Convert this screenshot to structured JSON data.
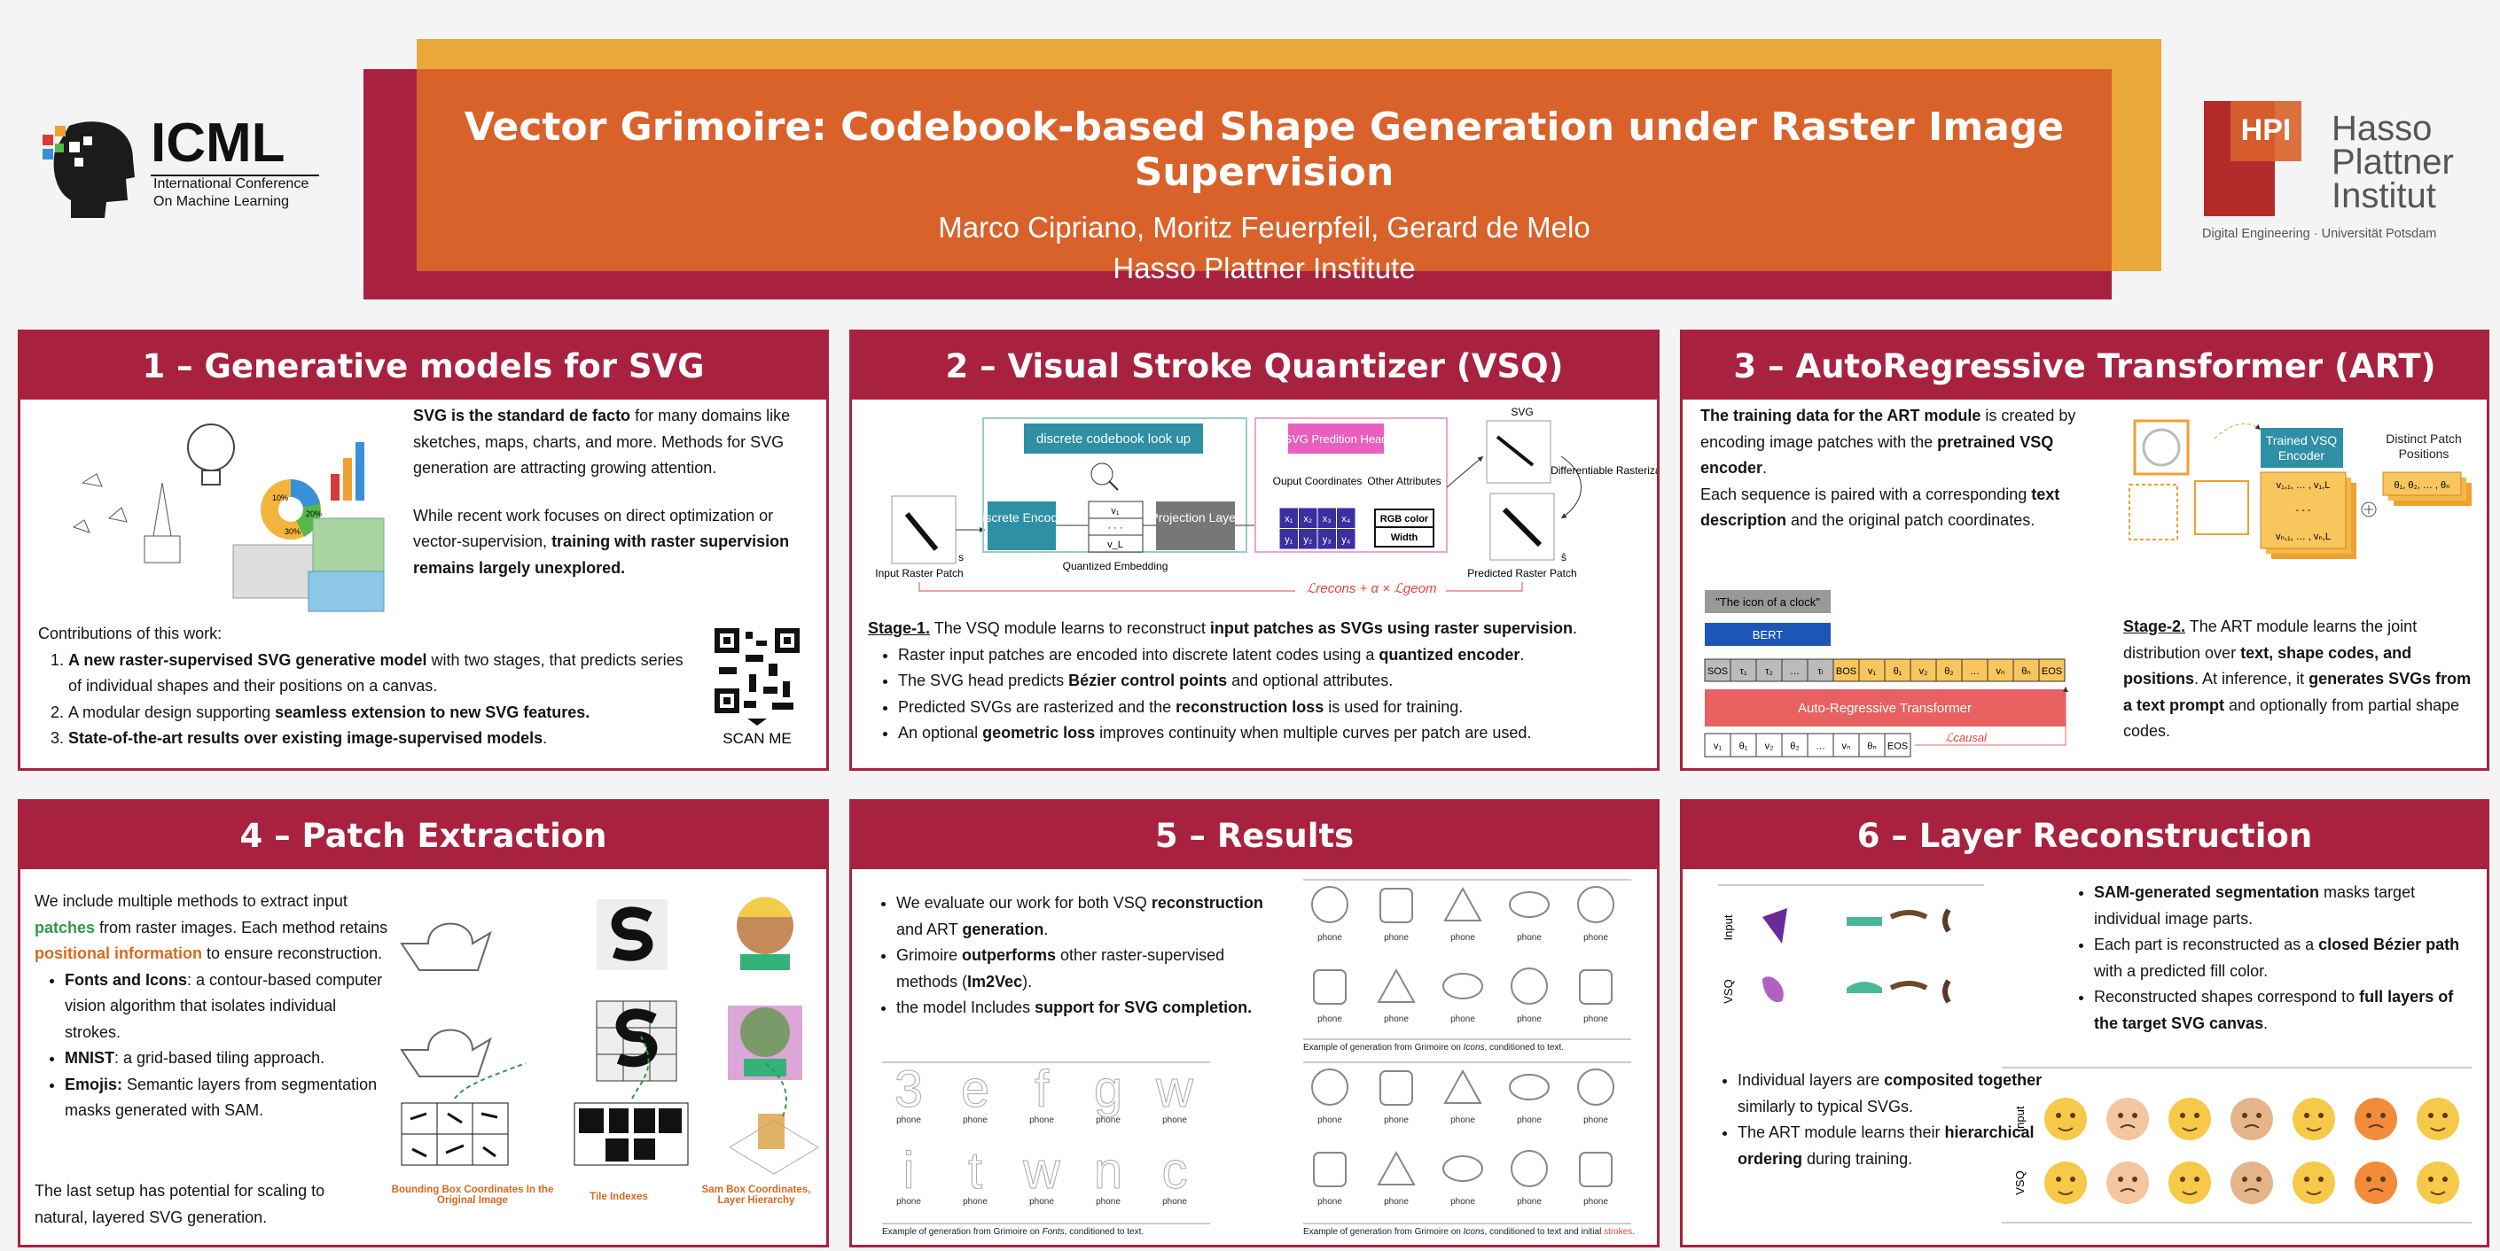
{
  "header": {
    "title": "Vector Grimoire: Codebook-based Shape Generation under Raster Image Supervision",
    "authors": "Marco Cipriano, Moritz Feuerpfeil, Gerard de Melo",
    "affiliation": "Hasso Plattner Institute"
  },
  "logos": {
    "icml": {
      "name": "ICML",
      "subtitle": [
        "International Conference",
        "On Machine Learning"
      ]
    },
    "hpi": {
      "mark": "HPI",
      "name": [
        "Hasso",
        "Plattner",
        "Institut"
      ],
      "subtitle": "Digital Engineering · Universität Potsdam"
    }
  },
  "sections": [
    {
      "title": "1 – Generative models for SVG",
      "intro": [
        [
          {
            "t": "SVG is the standard de facto",
            "bold": true
          },
          " for many domains like sketches, maps, charts, and more. Methods for SVG generation are attracting growing attention."
        ],
        [
          "While recent work focuses on direct optimization or vector-supervision, ",
          {
            "t": "training with raster supervision remains largely unexplored.",
            "bold": true
          }
        ]
      ],
      "contributions_title": "Contributions of this work:",
      "contributions": [
        [
          {
            "t": "A new raster-supervised SVG generative model",
            "bold": true
          },
          " with two stages, that predicts series of individual shapes and their positions on a canvas."
        ],
        [
          "A modular design supporting ",
          {
            "t": "seamless extension to new SVG features.",
            "bold": true
          }
        ],
        [
          {
            "t": "State-of-the-art results over existing image-supervised models",
            "bold": true
          },
          "."
        ]
      ],
      "figure_labels": [
        "10%",
        "20%",
        "30%"
      ],
      "qr_label": "SCAN ME"
    },
    {
      "title": "2 – Visual Stroke Quantizer (VSQ)",
      "figure": {
        "codebook": "discrete codebook look up",
        "head": "SVG Predition Head",
        "encoder": "Discrete Encoder",
        "projection": "Projection Layer",
        "embedding_label": "Quantized Embedding",
        "embedding": [
          "v₁",
          "· · ·",
          "v_L"
        ],
        "coords_label": "Ouput Coordinates",
        "coords": [
          "x₁",
          "x₂",
          "x₃",
          "x₄",
          "y₁",
          "y₂",
          "y₃",
          "y₄"
        ],
        "attributes_label": "Other Attributes",
        "attributes": [
          "RGB color",
          "Width"
        ],
        "input_label": "Input Raster Patch",
        "svg_label": "SVG",
        "raster_label": "Differentiable Rasterization",
        "output_label": "Predicted Raster Patch",
        "input_symbol": "s",
        "output_symbol": "ŝ",
        "loss": "ℒrecons + α × ℒgeom"
      },
      "stage": [
        {
          "t": "Stage-1.",
          "bold": true,
          "underline": true
        },
        " The VSQ module learns to reconstruct ",
        {
          "t": "input patches as SVGs using raster supervision",
          "bold": true
        },
        "."
      ],
      "bullets": [
        [
          "Raster input patches are encoded into discrete latent codes using a ",
          {
            "t": "quantized encoder",
            "bold": true
          },
          "."
        ],
        [
          "The SVG head predicts ",
          {
            "t": "Bézier control points",
            "bold": true
          },
          " and optional attributes."
        ],
        [
          "Predicted SVGs are rasterized and the ",
          {
            "t": "reconstruction loss",
            "bold": true
          },
          " is used for training."
        ],
        [
          "An optional ",
          {
            "t": "geometric loss",
            "bold": true
          },
          " improves continuity when multiple curves per patch are used."
        ]
      ]
    },
    {
      "title": "3 – AutoRegressive Transformer (ART)",
      "intro": [
        [
          {
            "t": "The training data for the ART module",
            "bold": true
          },
          " is created by encoding image patches with the ",
          {
            "t": "pretrained VSQ encoder",
            "bold": true
          },
          "."
        ],
        [
          "Each sequence is paired with a corresponding ",
          {
            "t": "text description",
            "bold": true
          },
          " and the original patch coordinates."
        ]
      ],
      "figure": {
        "encoder": "Trained VSQ Encoder",
        "codes": [
          "v₁,₁, … , v₁,L",
          "- - -",
          "vₙ,₁, … , vₙ,L"
        ],
        "positions_label": "Distinct Patch Positions",
        "positions": "θ₁, θ₂, … , θₙ",
        "prompt": "\"The icon of a clock\"",
        "bert": "BERT",
        "tokens": [
          "SOS",
          "τ₁",
          "τ₂",
          "…",
          "τₗ",
          "BOS",
          "v₁",
          "θ₁",
          "v₂",
          "θ₂",
          "…",
          "vₙ",
          "θₙ",
          "EOS"
        ],
        "transformer": "Auto-Regressive Transformer",
        "outputs": [
          "v₁",
          "θ₁",
          "v₂",
          "θ₂",
          "…",
          "vₙ",
          "θₙ",
          "EOS"
        ],
        "loss": "ℒcausal"
      },
      "stage": [
        {
          "t": "Stage-2.",
          "bold": true,
          "underline": true
        },
        " The ART module learns the joint distribution over ",
        {
          "t": "text, shape codes, and positions",
          "bold": true
        },
        ". At inference, it ",
        {
          "t": "generates SVGs from a text prompt",
          "bold": true
        },
        " and optionally from partial shape codes."
      ]
    },
    {
      "title": "4 – Patch Extraction",
      "intro": [
        "We include multiple methods to extract input ",
        {
          "t": "patches",
          "bold": true,
          "color": "#2f9a46"
        },
        " from raster images. Each method retains ",
        {
          "t": "positional information",
          "bold": true,
          "color": "#d9691e"
        },
        " to ensure reconstruction."
      ],
      "bullets": [
        [
          {
            "t": "Fonts and Icons",
            "bold": true
          },
          ": a contour-based computer vision algorithm that isolates individual strokes."
        ],
        [
          {
            "t": "MNIST",
            "bold": true
          },
          ": a grid-based tiling approach."
        ],
        [
          {
            "t": "Emojis:",
            "bold": true
          },
          " Semantic layers from segmentation masks generated with SAM."
        ]
      ],
      "outro": "The last setup has potential for scaling to natural, layered SVG generation.",
      "captions": [
        "Bounding Box Coordinates In the Original Image",
        "Tile Indexes",
        "Sam Box Coordinates, Layer Hierarchy"
      ]
    },
    {
      "title": "5 – Results",
      "bullets": [
        [
          "We evaluate our work for both VSQ ",
          {
            "t": "reconstruction",
            "bold": true
          },
          " and ART ",
          {
            "t": "generation",
            "bold": true
          },
          "."
        ],
        [
          "Grimoire ",
          {
            "t": "outperforms",
            "bold": true
          },
          " other raster-supervised methods (",
          {
            "t": "Im2Vec",
            "bold": true
          },
          ")."
        ],
        [
          "the model Includes ",
          {
            "t": "support for SVG completion.",
            "bold": true
          }
        ]
      ],
      "icons_text": {
        "labels": [
          "phone",
          "phone",
          "phone",
          "phone",
          "phone",
          "phone",
          "phone",
          "phone",
          "phone",
          "phone"
        ],
        "caption": [
          "Example of generation from Grimoire on ",
          {
            "t": "Icons",
            "italic": true
          },
          ", conditioned to text."
        ]
      },
      "fonts_text": {
        "glyphs": [
          "3",
          "e",
          "f",
          "g",
          "w",
          "i",
          "t",
          "w",
          "n",
          "c"
        ],
        "labels": [
          "phone",
          "phone",
          "phone",
          "phone",
          "phone",
          "phone",
          "phone",
          "phone",
          "phone",
          "phone"
        ],
        "caption": [
          "Example of generation from Grimoire on ",
          {
            "t": "Fonts",
            "italic": true
          },
          ", conditioned to text."
        ]
      },
      "icons_strokes": {
        "labels": [
          "phone",
          "phone",
          "phone",
          "phone",
          "phone",
          "phone",
          "phone",
          "phone",
          "phone",
          "phone"
        ],
        "caption": [
          "Example of generation from Grimoire on ",
          {
            "t": "Icons",
            "italic": true
          },
          ", conditioned to text and initial ",
          {
            "t": "strokes",
            "color": "#e0453a"
          },
          "."
        ]
      }
    },
    {
      "title": "6 – Layer Reconstruction",
      "rows": [
        "Input",
        "VSQ"
      ],
      "bullets_top": [
        [
          {
            "t": "SAM-generated segmentation",
            "bold": true
          },
          " masks target individual image parts."
        ],
        [
          "Each part is reconstructed as a ",
          {
            "t": "closed Bézier path",
            "bold": true
          },
          " with a predicted fill color."
        ],
        [
          "Reconstructed shapes correspond to ",
          {
            "t": "full layers of the target SVG canvas",
            "bold": true
          },
          "."
        ]
      ],
      "bullets_bottom": [
        [
          "Individual layers are ",
          {
            "t": "composited together",
            "bold": true
          },
          " similarly to typical SVGs."
        ],
        [
          "The ART module learns their ",
          {
            "t": "hierarchical ordering",
            "bold": true
          },
          " during training."
        ]
      ],
      "emoji_rows": [
        "Input",
        "VSQ"
      ]
    }
  ]
}
